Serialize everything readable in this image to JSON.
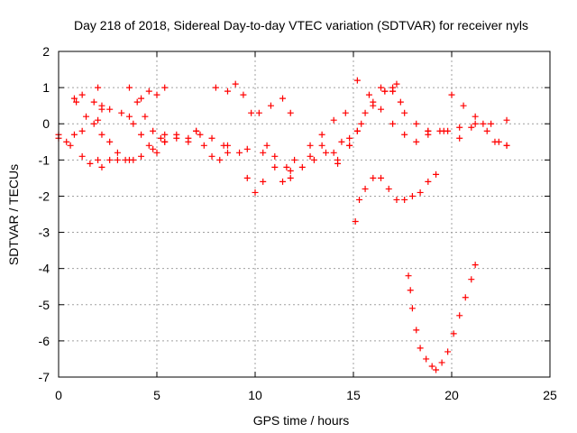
{
  "chart_data": {
    "type": "scatter",
    "title": "Day 218 of 2018, Sidereal Day-to-day VTEC variation (SDTVAR) for receiver nyls",
    "xlabel": "GPS time / hours",
    "ylabel": "SDTVAR / TECUs",
    "xlim": [
      0,
      25
    ],
    "ylim": [
      -7,
      2
    ],
    "xticks": [
      0,
      5,
      10,
      15,
      20,
      25
    ],
    "yticks": [
      -7,
      -6,
      -5,
      -4,
      -3,
      -2,
      -1,
      0,
      1,
      2
    ],
    "grid": true,
    "marker": "+",
    "color": "#ff0000",
    "series": [
      {
        "name": "s1",
        "x": [
          0.0,
          0.4,
          0.8,
          1.2
        ],
        "y": [
          -0.4,
          -0.5,
          -0.3,
          -0.2
        ]
      },
      {
        "name": "s2",
        "x": [
          0.8,
          1.2,
          1.8,
          2.2
        ],
        "y": [
          0.7,
          0.8,
          0.6,
          0.4
        ]
      },
      {
        "name": "s3",
        "x": [
          0.9,
          1.4,
          1.8,
          2.0
        ],
        "y": [
          0.6,
          0.2,
          0.0,
          0.1
        ]
      },
      {
        "name": "s4",
        "x": [
          2.0,
          2.2,
          2.6,
          3.2,
          3.6
        ],
        "y": [
          1.0,
          0.5,
          0.4,
          0.3,
          0.2
        ]
      },
      {
        "name": "s5",
        "x": [
          0.0,
          0.6,
          1.2,
          1.6,
          2.0
        ],
        "y": [
          -0.3,
          -0.6,
          -0.9,
          -1.1,
          -1.0
        ]
      },
      {
        "name": "s6",
        "x": [
          2.2,
          2.6,
          3.0,
          3.6,
          4.2,
          4.8,
          5.4
        ],
        "y": [
          -1.2,
          -1.0,
          -1.0,
          -1.0,
          -0.9,
          -0.7,
          -0.5
        ]
      },
      {
        "name": "s7",
        "x": [
          2.2,
          2.6,
          3.0,
          3.4,
          3.8
        ],
        "y": [
          -0.3,
          -0.5,
          -0.8,
          -1.0,
          -1.0
        ]
      },
      {
        "name": "s8",
        "x": [
          3.6,
          4.0,
          4.4,
          4.8,
          5.2
        ],
        "y": [
          1.0,
          0.6,
          0.2,
          -0.2,
          -0.4
        ]
      },
      {
        "name": "s9",
        "x": [
          4.2,
          4.6,
          5.0,
          5.4
        ],
        "y": [
          0.7,
          0.9,
          0.8,
          1.0
        ]
      },
      {
        "name": "s10",
        "x": [
          3.8,
          4.2,
          4.6,
          5.0,
          5.4,
          6.0,
          6.6,
          7.0
        ],
        "y": [
          0.0,
          -0.3,
          -0.6,
          -0.8,
          -0.5,
          -0.3,
          -0.4,
          -0.2
        ]
      },
      {
        "name": "s11",
        "x": [
          5.4,
          6.0,
          6.6,
          7.2,
          7.8,
          8.4
        ],
        "y": [
          -0.3,
          -0.4,
          -0.5,
          -0.3,
          -0.4,
          -0.6
        ]
      },
      {
        "name": "s12",
        "x": [
          7.0,
          7.4,
          7.8,
          8.2,
          8.6
        ],
        "y": [
          -0.2,
          -0.6,
          -0.9,
          -1.0,
          -0.8
        ]
      },
      {
        "name": "s13",
        "x": [
          8.0,
          8.6,
          9.0,
          9.4,
          9.8
        ],
        "y": [
          1.0,
          0.9,
          1.1,
          0.8,
          0.3
        ]
      },
      {
        "name": "s14",
        "x": [
          8.6,
          9.2,
          9.6,
          10.0,
          10.4
        ],
        "y": [
          -0.6,
          -0.8,
          -1.5,
          -1.9,
          -1.6
        ]
      },
      {
        "name": "s15",
        "x": [
          10.2,
          10.8,
          11.4,
          11.8
        ],
        "y": [
          0.3,
          0.5,
          0.7,
          0.3
        ]
      },
      {
        "name": "s16",
        "x": [
          10.6,
          11.0,
          11.4,
          11.8
        ],
        "y": [
          -0.6,
          -1.2,
          -1.6,
          -1.5
        ]
      },
      {
        "name": "s17",
        "x": [
          9.6,
          10.4,
          11.0,
          11.6
        ],
        "y": [
          -0.7,
          -0.8,
          -0.9,
          -1.2
        ]
      },
      {
        "name": "s18",
        "x": [
          11.8,
          12.4,
          13.0,
          13.6,
          14.2
        ],
        "y": [
          -1.3,
          -1.2,
          -1.0,
          -0.8,
          -1.0
        ]
      },
      {
        "name": "s19",
        "x": [
          12.0,
          12.8,
          13.4,
          14.0,
          14.6,
          15.2
        ],
        "y": [
          -1.0,
          -0.6,
          -0.3,
          0.1,
          0.3,
          1.2
        ]
      },
      {
        "name": "s20",
        "x": [
          12.8,
          13.4,
          14.0,
          14.4,
          14.8,
          15.2
        ],
        "y": [
          -0.9,
          -0.6,
          -0.8,
          -0.5,
          -0.4,
          -0.2
        ]
      },
      {
        "name": "s21",
        "x": [
          14.8,
          15.2,
          15.6,
          16.0,
          16.6,
          17.2
        ],
        "y": [
          -0.6,
          -0.2,
          0.3,
          0.6,
          0.9,
          1.1
        ]
      },
      {
        "name": "s22",
        "x": [
          14.2,
          14.8,
          15.4,
          16.0,
          16.6,
          17.0
        ],
        "y": [
          -1.1,
          -0.6,
          0.0,
          0.5,
          0.9,
          1.0
        ]
      },
      {
        "name": "s23",
        "x": [
          15.8,
          16.4,
          17.0,
          17.4
        ],
        "y": [
          0.8,
          1.0,
          0.9,
          0.6
        ]
      },
      {
        "name": "s24",
        "x": [
          17.0,
          17.6,
          18.2,
          18.8
        ],
        "y": [
          0.9,
          0.3,
          0.0,
          -0.2
        ]
      },
      {
        "name": "s25",
        "x": [
          16.4,
          17.0,
          17.6,
          18.2,
          18.8,
          19.4
        ],
        "y": [
          0.4,
          0.0,
          -0.3,
          -0.5,
          -0.3,
          -0.2
        ]
      },
      {
        "name": "s26",
        "x": [
          18.8,
          19.6,
          20.4,
          21.2,
          22.0,
          22.8
        ],
        "y": [
          -0.2,
          -0.2,
          -0.1,
          0.0,
          0.0,
          0.1
        ]
      },
      {
        "name": "s27",
        "x": [
          20.0,
          20.6,
          21.2,
          21.8,
          22.4,
          22.8
        ],
        "y": [
          0.8,
          0.5,
          0.2,
          -0.2,
          -0.5,
          -0.6
        ]
      },
      {
        "name": "s28",
        "x": [
          19.8,
          20.4,
          21.0,
          21.6,
          22.2,
          22.8
        ],
        "y": [
          -0.2,
          -0.4,
          -0.1,
          0.0,
          -0.5,
          -0.6
        ]
      },
      {
        "name": "s29",
        "x": [
          15.1,
          15.3,
          15.6,
          16.0,
          16.4,
          16.8,
          17.2,
          17.6,
          18.0,
          18.4,
          18.8,
          19.2
        ],
        "y": [
          -2.7,
          -2.1,
          -1.8,
          -1.5,
          -1.5,
          -1.8,
          -2.1,
          -2.1,
          -2.0,
          -1.9,
          -1.6,
          -1.4
        ]
      },
      {
        "name": "s30",
        "x": [
          17.8,
          17.9,
          18.0,
          18.2,
          18.4,
          18.7,
          19.0,
          19.2,
          19.5,
          19.8,
          20.1,
          20.4,
          20.7,
          21.0,
          21.2
        ],
        "y": [
          -4.2,
          -4.6,
          -5.1,
          -5.7,
          -6.2,
          -6.5,
          -6.7,
          -6.8,
          -6.6,
          -6.3,
          -5.8,
          -5.3,
          -4.8,
          -4.3,
          -3.9
        ]
      }
    ]
  }
}
